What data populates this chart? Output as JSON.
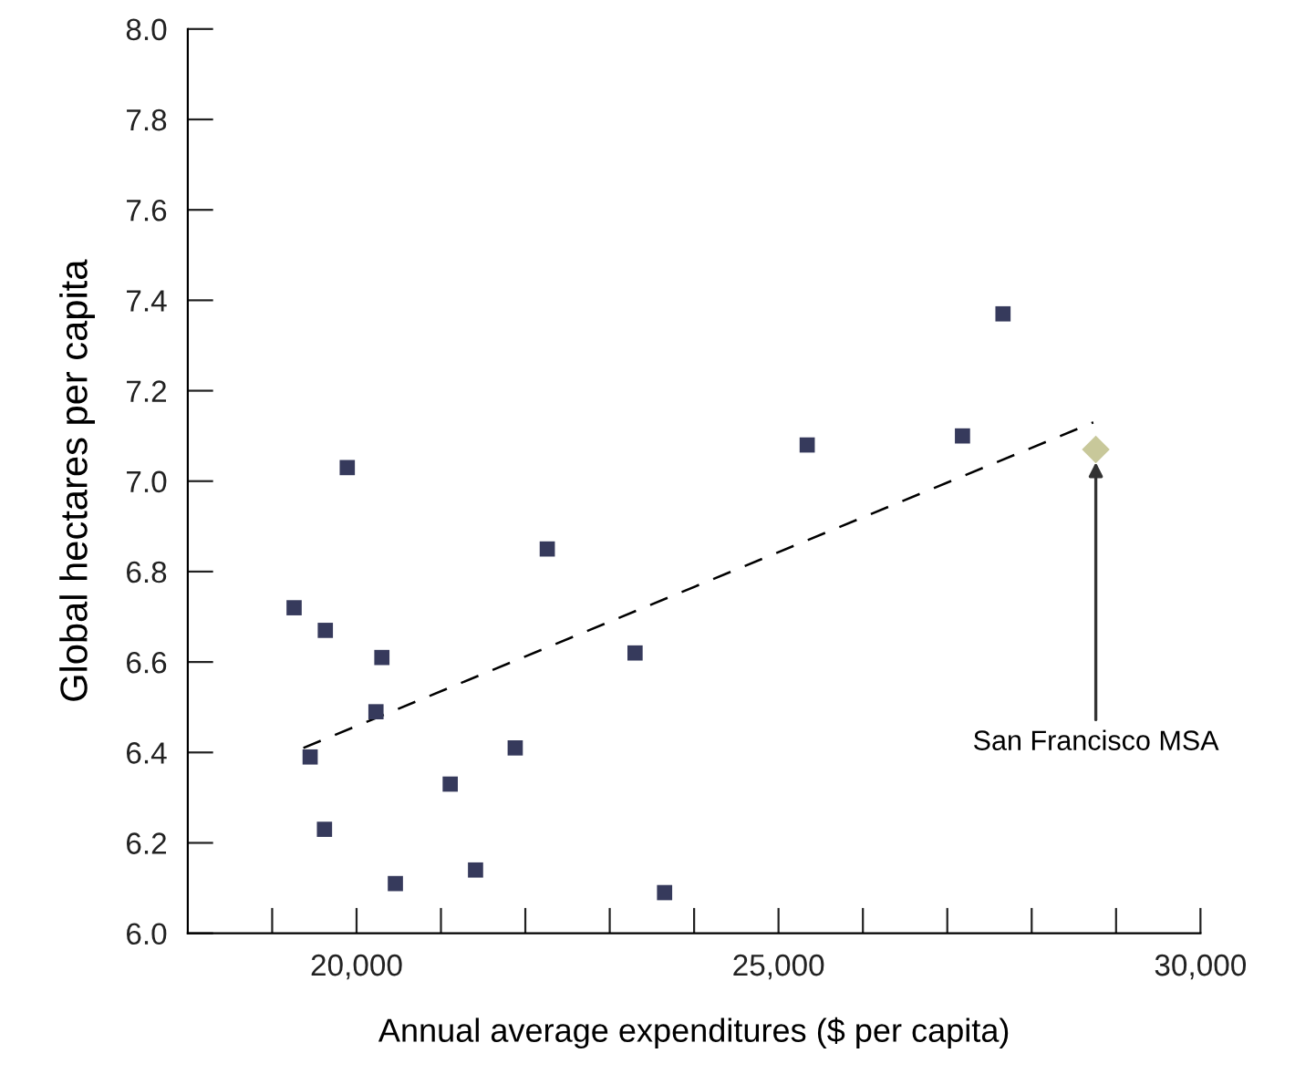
{
  "chart_data": {
    "type": "scatter",
    "xlabel": "Annual average expenditures ($ per capita)",
    "ylabel": "Global hectares per capita",
    "xlim": [
      18000,
      30000
    ],
    "ylim": [
      6.0,
      8.0
    ],
    "xticks": [
      {
        "value": 19000,
        "label": null
      },
      {
        "value": 20000,
        "label": "20,000"
      },
      {
        "value": 21000,
        "label": null
      },
      {
        "value": 22000,
        "label": null
      },
      {
        "value": 23000,
        "label": null
      },
      {
        "value": 24000,
        "label": null
      },
      {
        "value": 25000,
        "label": "25,000"
      },
      {
        "value": 26000,
        "label": null
      },
      {
        "value": 27000,
        "label": null
      },
      {
        "value": 28000,
        "label": null
      },
      {
        "value": 29000,
        "label": null
      },
      {
        "value": 30000,
        "label": "30,000"
      }
    ],
    "yticks": [
      {
        "value": 6.0,
        "label": "6.0"
      },
      {
        "value": 6.2,
        "label": "6.2"
      },
      {
        "value": 6.4,
        "label": "6.4"
      },
      {
        "value": 6.6,
        "label": "6.6"
      },
      {
        "value": 6.8,
        "label": "6.8"
      },
      {
        "value": 7.0,
        "label": "7.0"
      },
      {
        "value": 7.2,
        "label": "7.2"
      },
      {
        "value": 7.4,
        "label": "7.4"
      },
      {
        "value": 7.6,
        "label": "7.6"
      },
      {
        "value": 7.8,
        "label": "7.8"
      },
      {
        "value": 8.0,
        "label": "8.0"
      }
    ],
    "grid": false,
    "series": [
      {
        "marker": "square",
        "color": "#363a5c",
        "x": [
          19260,
          19630,
          20300,
          20230,
          19450,
          19620,
          20460,
          21110,
          21410,
          21880,
          22260,
          23300,
          23650,
          19890,
          25340,
          27180,
          27660
        ],
        "values": [
          6.72,
          6.67,
          6.61,
          6.49,
          6.39,
          6.23,
          6.11,
          6.33,
          6.14,
          6.41,
          6.85,
          6.62,
          6.09,
          7.03,
          7.08,
          7.1,
          7.37
        ]
      },
      {
        "marker": "diamond",
        "color": "#c8c89a",
        "x": [
          28760
        ],
        "values": [
          7.07
        ]
      },
      {
        "type": "line",
        "marker": "none",
        "line_style": "dashed",
        "color": "#000000",
        "x": [
          19370,
          28730
        ],
        "values": [
          6.41,
          7.13
        ]
      }
    ],
    "annotations": [
      {
        "text": "San Francisco MSA",
        "x": 28760,
        "y": 7.07
      }
    ]
  }
}
